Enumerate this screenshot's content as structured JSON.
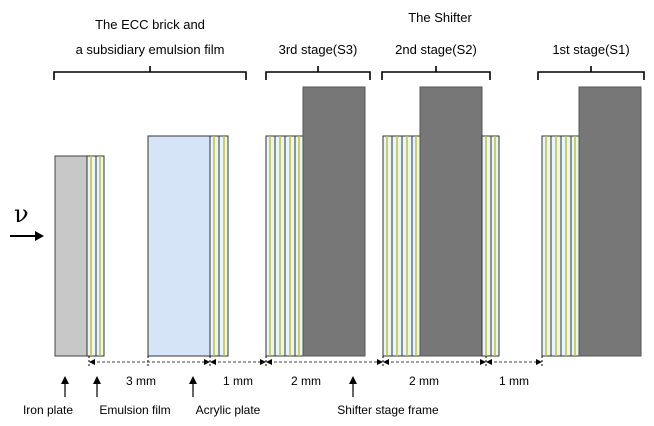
{
  "labels": {
    "ecc_brick_line1": "The ECC brick and",
    "ecc_brick_line2": "a subsidiary emulsion film",
    "shifter": "The Shifter",
    "stage3": "3rd stage(S3)",
    "stage2": "2nd stage(S2)",
    "stage1": "1st stage(S1)",
    "neutrino": "ν"
  },
  "dimensions": {
    "gap_3mm": "3 mm",
    "gap_1mm_a": "1 mm",
    "gap_2mm_a": "2 mm",
    "gap_2mm_b": "2 mm",
    "gap_1mm_b": "1 mm"
  },
  "components": {
    "iron_plate": "Iron plate",
    "emulsion_film": "Emulsion film",
    "acrylic_plate": "Acrylic plate",
    "shifter_frame": "Shifter stage frame"
  },
  "colors": {
    "iron": "#c8c8c8",
    "acrylic": "#d6e4f8",
    "frame": "#777777",
    "emulsion_base": "#e6f6fb",
    "emulsion_layer": "#f2eca0"
  }
}
